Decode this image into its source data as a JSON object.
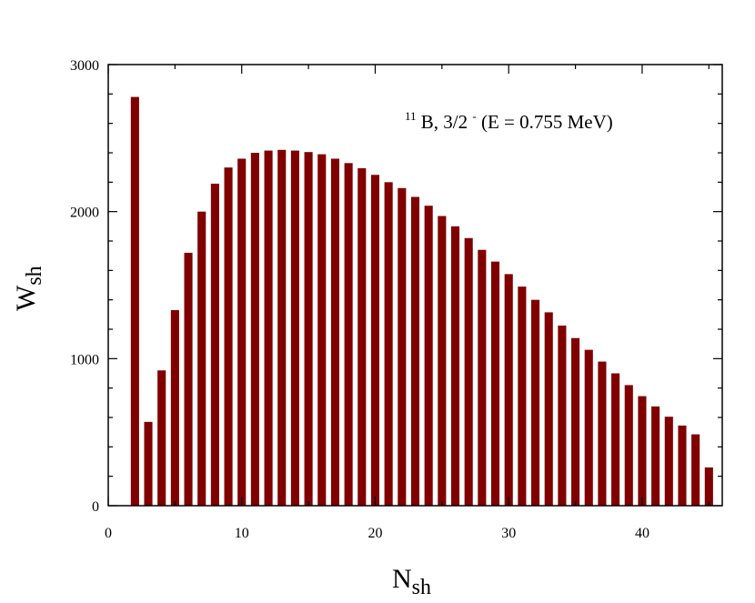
{
  "chart_data": {
    "type": "bar",
    "xlabel": {
      "main": "N",
      "sub": "sh"
    },
    "ylabel": {
      "main": "W",
      "sub": "sh"
    },
    "annotation": {
      "mass_number": "11",
      "element": "B, 3/2",
      "parity": "-",
      "rest": " (E = 0.755 MeV)"
    },
    "xlim": [
      0,
      46
    ],
    "ylim": [
      0,
      3000
    ],
    "x_ticks": [
      0,
      10,
      20,
      30,
      40
    ],
    "y_ticks": [
      0,
      1000,
      2000,
      3000
    ],
    "bar_color": "#800000",
    "x": [
      2,
      3,
      4,
      5,
      6,
      7,
      8,
      9,
      10,
      11,
      12,
      13,
      14,
      15,
      16,
      17,
      18,
      19,
      20,
      21,
      22,
      23,
      24,
      25,
      26,
      27,
      28,
      29,
      30,
      31,
      32,
      33,
      34,
      35,
      36,
      37,
      38,
      39,
      40,
      41,
      42,
      43,
      44,
      45
    ],
    "values": [
      2780,
      570,
      920,
      1330,
      1720,
      2000,
      2190,
      2300,
      2360,
      2400,
      2415,
      2420,
      2415,
      2405,
      2390,
      2360,
      2330,
      2295,
      2250,
      2200,
      2160,
      2100,
      2040,
      1970,
      1900,
      1820,
      1740,
      1660,
      1575,
      1490,
      1400,
      1315,
      1225,
      1140,
      1060,
      980,
      900,
      820,
      745,
      675,
      605,
      545,
      485,
      260
    ]
  }
}
